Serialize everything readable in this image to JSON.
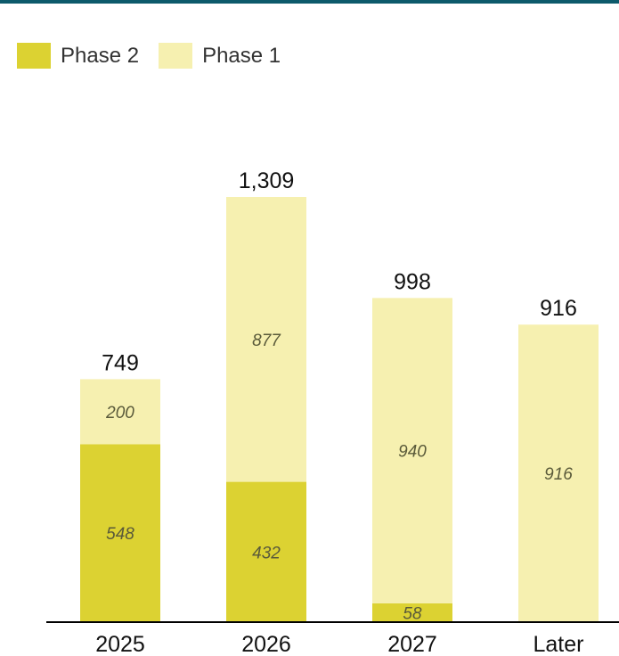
{
  "colors": {
    "rule": "#0d5a6b",
    "phase2": "#dcd232",
    "phase1": "#f6f0b0",
    "axis": "#000000"
  },
  "chart_data": {
    "type": "bar",
    "stacked": true,
    "categories": [
      "2025",
      "2026",
      "2027",
      "Later"
    ],
    "series": [
      {
        "name": "Phase 2",
        "values": [
          548,
          432,
          58,
          0
        ]
      },
      {
        "name": "Phase 1",
        "values": [
          200,
          877,
          940,
          916
        ]
      }
    ],
    "totals": [
      "749",
      "1,309",
      "998",
      "916"
    ],
    "segment_labels": [
      [
        "548",
        "432",
        "58",
        ""
      ],
      [
        "200",
        "877",
        "940",
        "916"
      ]
    ],
    "ylim": [
      0,
      1309
    ],
    "legend_position": "top-left",
    "grid": false
  }
}
